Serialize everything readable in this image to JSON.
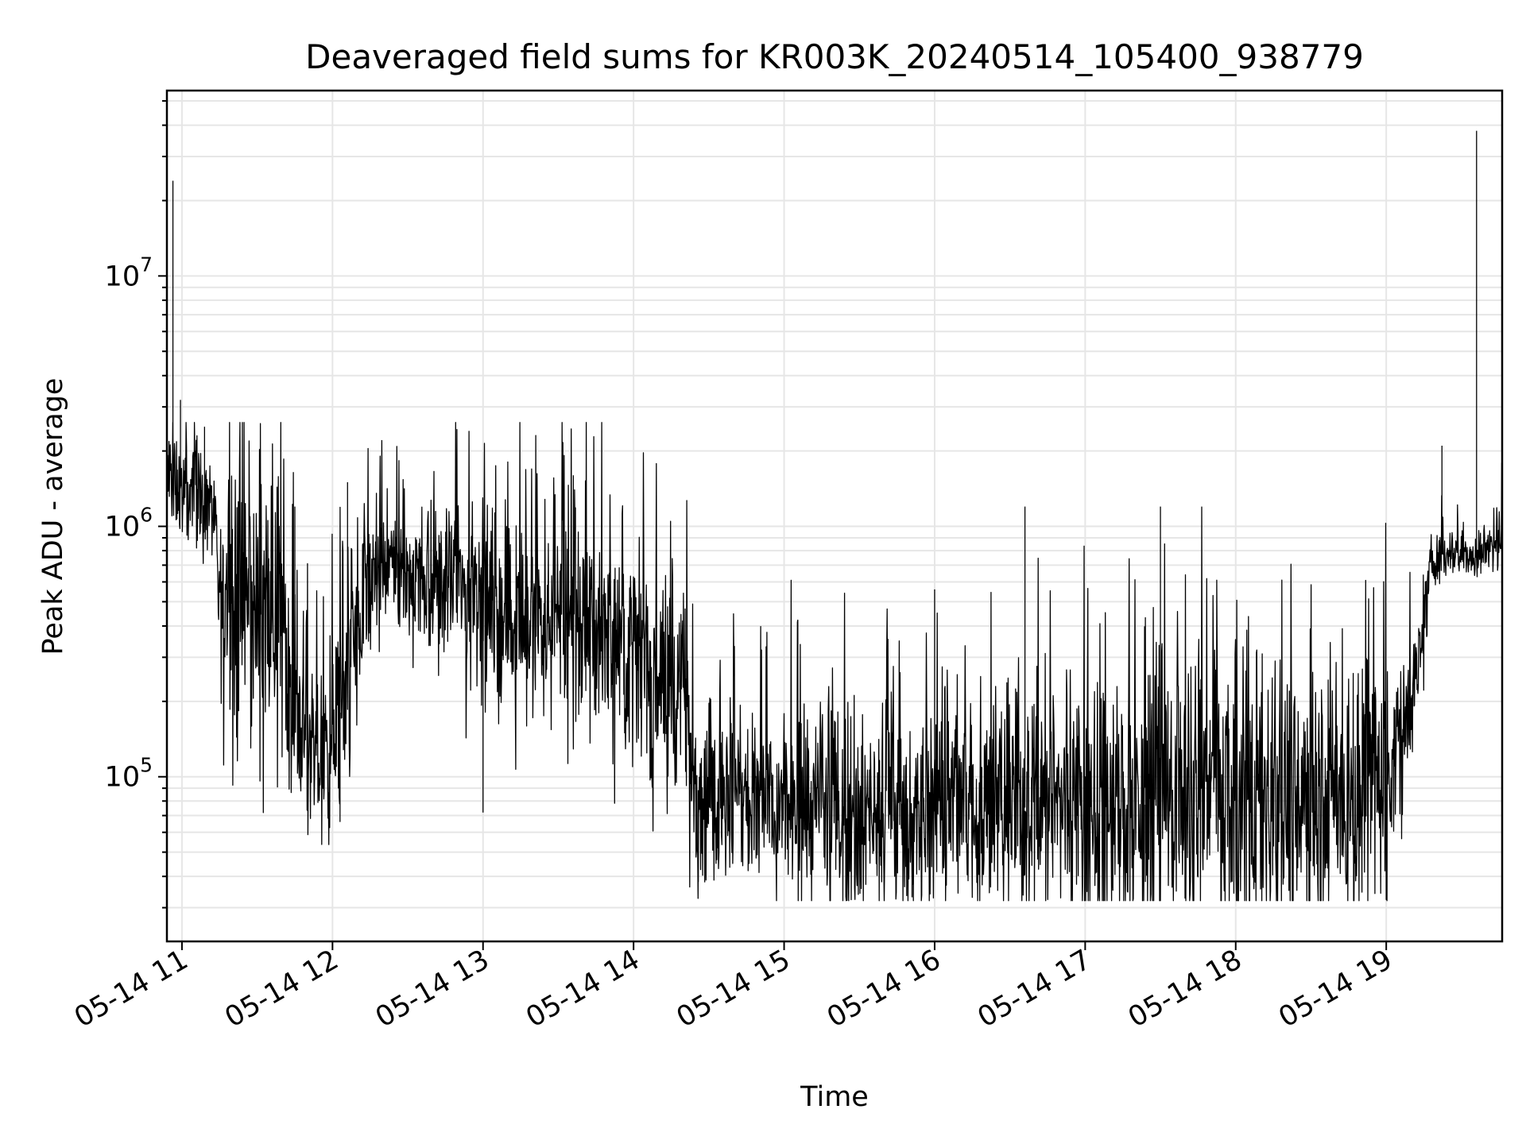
{
  "chart_data": {
    "type": "line",
    "title": "Deaveraged field sums for KR003K_20240514_105400_938779",
    "xlabel": "Time",
    "ylabel": "Peak ADU - average",
    "yscale": "log",
    "ylim": [
      22000,
      55000000
    ],
    "xlim_hours": [
      10.9,
      19.77
    ],
    "grid": true,
    "x_ticks": [
      {
        "label": "05-14 11",
        "hour": 11
      },
      {
        "label": "05-14 12",
        "hour": 12
      },
      {
        "label": "05-14 13",
        "hour": 13
      },
      {
        "label": "05-14 14",
        "hour": 14
      },
      {
        "label": "05-14 15",
        "hour": 15
      },
      {
        "label": "05-14 16",
        "hour": 16
      },
      {
        "label": "05-14 17",
        "hour": 17
      },
      {
        "label": "05-14 18",
        "hour": 18
      },
      {
        "label": "05-14 19",
        "hour": 19
      }
    ],
    "y_ticks": [
      {
        "base": "10",
        "exp": "5",
        "value": 100000
      },
      {
        "base": "10",
        "exp": "6",
        "value": 1000000
      },
      {
        "base": "10",
        "exp": "7",
        "value": 10000000
      }
    ],
    "series": [
      {
        "name": "field sums",
        "color": "#000000",
        "x_hours": [
          10.9,
          10.95,
          11.0,
          11.1,
          11.2,
          11.25,
          11.35,
          11.5,
          11.65,
          11.75,
          11.85,
          12.0,
          12.1,
          12.25,
          12.4,
          12.6,
          12.8,
          13.0,
          13.2,
          13.4,
          13.6,
          13.8,
          14.0,
          14.2,
          14.35,
          14.4,
          14.6,
          14.8,
          15.0,
          15.3,
          15.6,
          15.9,
          16.2,
          16.5,
          16.8,
          17.0,
          17.3,
          17.6,
          17.9,
          18.2,
          18.5,
          18.8,
          18.95,
          19.1,
          19.25,
          19.3,
          19.45,
          19.6,
          19.77
        ],
        "values": [
          1600000,
          1500000,
          1400000,
          1300000,
          1200000,
          500000,
          450000,
          480000,
          500000,
          250000,
          110000,
          130000,
          250000,
          600000,
          700000,
          620000,
          600000,
          500000,
          450000,
          420000,
          400000,
          380000,
          300000,
          250000,
          200000,
          90000,
          80000,
          78000,
          75000,
          72000,
          70000,
          72000,
          74000,
          75000,
          76000,
          76000,
          77000,
          78000,
          80000,
          82000,
          85000,
          90000,
          100000,
          150000,
          350000,
          750000,
          800000,
          750000,
          900000
        ],
        "amplitude": [
          0.25,
          0.22,
          0.2,
          0.2,
          0.22,
          0.35,
          0.55,
          0.6,
          0.6,
          0.55,
          0.3,
          0.4,
          0.55,
          0.35,
          0.3,
          0.32,
          0.35,
          0.38,
          0.4,
          0.42,
          0.42,
          0.42,
          0.45,
          0.45,
          0.45,
          0.4,
          0.4,
          0.42,
          0.42,
          0.42,
          0.42,
          0.45,
          0.45,
          0.45,
          0.5,
          0.55,
          0.6,
          0.62,
          0.62,
          0.62,
          0.62,
          0.6,
          0.5,
          0.35,
          0.2,
          0.12,
          0.1,
          0.1,
          0.12
        ],
        "spikes": [
          {
            "hour": 10.94,
            "value": 24000000
          },
          {
            "hour": 10.99,
            "value": 3200000
          },
          {
            "hour": 11.15,
            "value": 2500000
          },
          {
            "hour": 11.75,
            "value": 1200000
          },
          {
            "hour": 12.1,
            "value": 1500000
          },
          {
            "hour": 12.05,
            "value": 66000
          },
          {
            "hour": 13.0,
            "value": 72000
          },
          {
            "hour": 13.6,
            "value": 1600000
          },
          {
            "hour": 14.43,
            "value": 38000
          },
          {
            "hour": 15.85,
            "value": 33000
          },
          {
            "hour": 16.0,
            "value": 560000
          },
          {
            "hour": 16.6,
            "value": 1200000
          },
          {
            "hour": 17.4,
            "value": 38000
          },
          {
            "hour": 17.5,
            "value": 1200000
          },
          {
            "hour": 18.6,
            "value": 45000
          },
          {
            "hour": 19.37,
            "value": 2100000
          },
          {
            "hour": 19.6,
            "value": 38000000
          }
        ]
      }
    ]
  }
}
